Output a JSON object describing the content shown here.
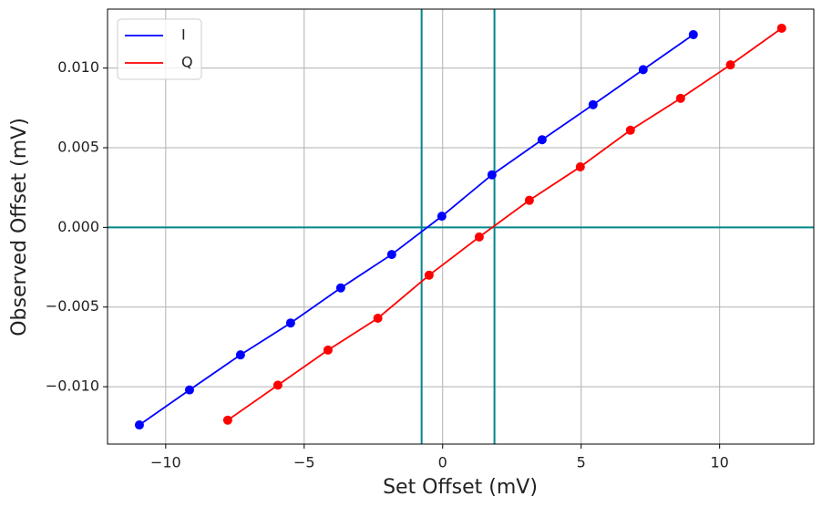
{
  "chart_data": {
    "type": "scatter-line",
    "xlabel": "Set Offset (mV)",
    "ylabel": "Observed Offset (mV)",
    "xlim": [
      -12.1,
      13.4
    ],
    "ylim": [
      -0.0136,
      0.0137
    ],
    "xticks": [
      {
        "value": -10,
        "label": "−10"
      },
      {
        "value": -5,
        "label": "−5"
      },
      0,
      5,
      10
    ],
    "yticks": [
      {
        "value": -0.01,
        "label": "−0.010"
      },
      {
        "value": -0.005,
        "label": "−0.005"
      },
      {
        "value": 0,
        "label": "0.000"
      },
      {
        "value": 0.005,
        "label": "0.005"
      },
      {
        "value": 0.01,
        "label": "0.010"
      }
    ],
    "grid": true,
    "legend": "upper-left",
    "vlines": [
      -0.76,
      1.87
    ],
    "hlines": [
      0
    ],
    "ref_color": "#00868b",
    "series": [
      {
        "name": "I",
        "color": "#0000ff",
        "x": [
          -10.95,
          -9.14,
          -7.3,
          -5.49,
          -3.68,
          -1.84,
          -0.03,
          1.78,
          3.59,
          5.43,
          7.24,
          9.05
        ],
        "values": [
          -0.0124,
          -0.0102,
          -0.008,
          -0.006,
          -0.0038,
          -0.0017,
          0.0007,
          0.0033,
          0.0055,
          0.0077,
          0.0099,
          0.0121
        ]
      },
      {
        "name": "Q",
        "color": "#ff0000",
        "x": [
          -7.76,
          -5.95,
          -4.14,
          -2.34,
          -0.49,
          1.32,
          3.13,
          4.97,
          6.78,
          8.59,
          10.39,
          12.24
        ],
        "values": [
          -0.0121,
          -0.0099,
          -0.0077,
          -0.0057,
          -0.003,
          -0.0006,
          0.0017,
          0.0038,
          0.0061,
          0.0081,
          0.0102,
          0.0125
        ]
      }
    ]
  }
}
